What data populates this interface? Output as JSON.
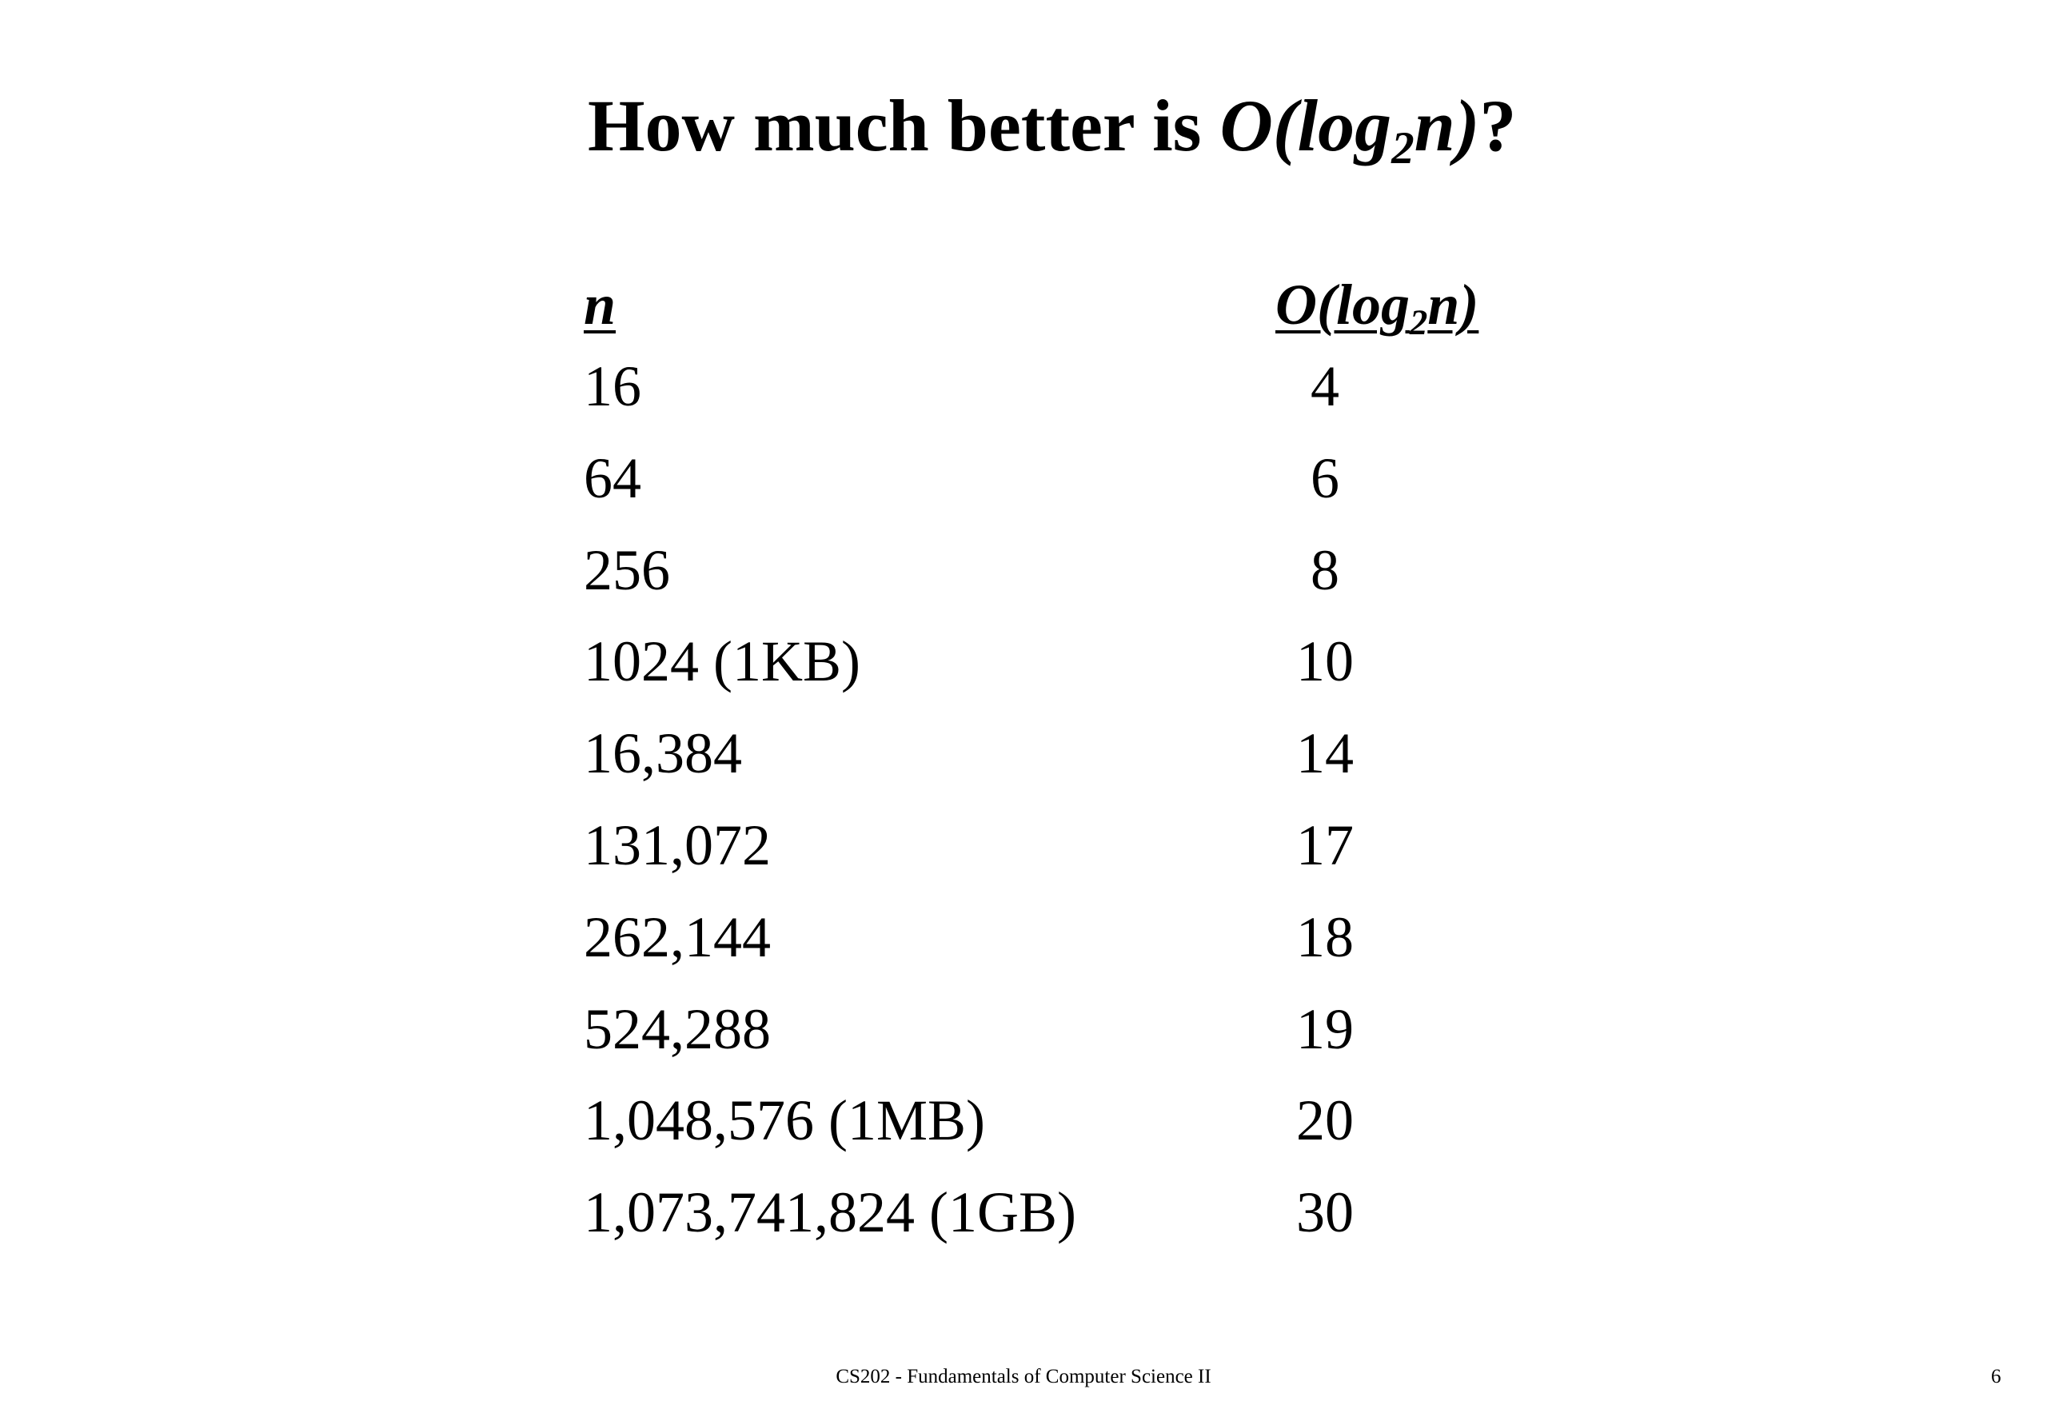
{
  "title": {
    "prefix": "How much better is ",
    "math_main": "O(log",
    "math_sub": "2",
    "math_after": "n)",
    "suffix": "?"
  },
  "table": {
    "header_n": "n",
    "header_log_main": "O(log",
    "header_log_sub": "2",
    "header_log_after": "n)",
    "rows": [
      {
        "n": "16",
        "log": "4"
      },
      {
        "n": "64",
        "log": "6"
      },
      {
        "n": "256",
        "log": "8"
      },
      {
        "n": "1024 (1KB)",
        "log": "10"
      },
      {
        "n": "16,384",
        "log": "14"
      },
      {
        "n": "131,072",
        "log": "17"
      },
      {
        "n": "262,144",
        "log": "18"
      },
      {
        "n": "524,288",
        "log": "19"
      },
      {
        "n": "1,048,576 (1MB)",
        "log": "20"
      },
      {
        "n": "1,073,741,824 (1GB)",
        "log": "30"
      }
    ]
  },
  "footer": {
    "course": "CS202 - Fundamentals of Computer Science II",
    "page_number": "6"
  }
}
